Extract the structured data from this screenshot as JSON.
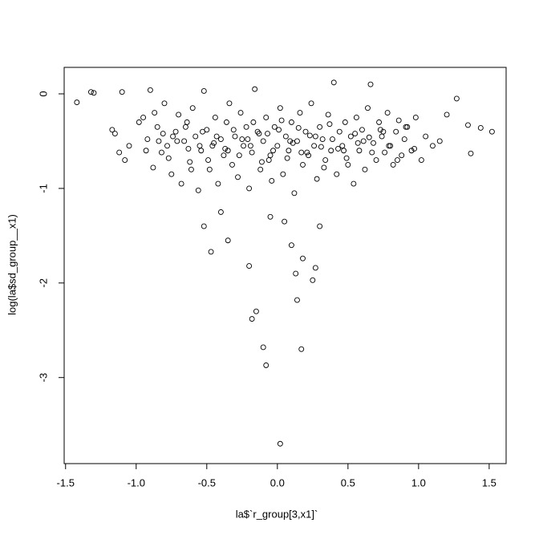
{
  "chart_data": {
    "type": "scatter",
    "x_label": "la$`r_group[3,x1]`",
    "y_label": "log(la$sd_group__x1)",
    "xlim": [
      -1.51,
      1.62
    ],
    "ylim": [
      -3.91,
      0.28
    ],
    "xticks": [
      {
        "value": -1.5,
        "label": "-1.5"
      },
      {
        "value": -1,
        "label": "-1.0"
      },
      {
        "value": -0.5,
        "label": "-0.5"
      },
      {
        "value": 0,
        "label": "0.0"
      },
      {
        "value": 0.5,
        "label": "0.5"
      },
      {
        "value": 1,
        "label": "1.0"
      },
      {
        "value": 1.5,
        "label": "1.5"
      }
    ],
    "yticks": [
      0,
      -1,
      -2,
      -3
    ],
    "color": "#000000",
    "x": [
      -1.42,
      -1.32,
      -1.3,
      -1.1,
      -1.17,
      -1.15,
      -1.08,
      -1.05,
      -1.12,
      -0.98,
      -0.95,
      -0.92,
      -0.9,
      -0.88,
      -0.85,
      -0.82,
      -0.8,
      -0.78,
      -0.75,
      -0.72,
      -0.7,
      -0.68,
      -0.66,
      -0.64,
      -0.62,
      -0.6,
      -0.58,
      -0.56,
      -0.54,
      -0.52,
      -0.5,
      -0.48,
      -0.46,
      -0.44,
      -0.42,
      -0.4,
      -0.38,
      -0.36,
      -0.34,
      -0.32,
      -0.3,
      -0.28,
      -0.26,
      -0.24,
      -0.22,
      -0.2,
      -0.18,
      -0.16,
      -0.14,
      -0.12,
      -0.1,
      -0.08,
      -0.06,
      -0.04,
      -0.02,
      0.0,
      0.02,
      0.04,
      0.06,
      0.08,
      0.1,
      0.12,
      0.14,
      0.16,
      0.18,
      0.2,
      0.22,
      0.24,
      0.26,
      0.28,
      0.3,
      0.32,
      0.34,
      0.36,
      0.38,
      0.4,
      0.42,
      0.44,
      0.46,
      0.48,
      0.5,
      0.52,
      0.54,
      0.56,
      0.58,
      0.6,
      0.62,
      0.64,
      0.66,
      0.68,
      0.7,
      0.72,
      0.74,
      0.76,
      0.78,
      0.8,
      0.82,
      0.84,
      0.86,
      0.88,
      0.9,
      0.92,
      0.95,
      0.98,
      1.02,
      1.05,
      1.1,
      1.15,
      1.2,
      1.27,
      1.35,
      1.37,
      1.44,
      1.52,
      -0.93,
      -0.87,
      -0.81,
      -0.77,
      -0.71,
      -0.65,
      -0.61,
      -0.55,
      -0.49,
      -0.43,
      -0.37,
      -0.31,
      -0.27,
      -0.21,
      -0.17,
      -0.11,
      -0.07,
      -0.03,
      0.03,
      0.07,
      0.11,
      0.15,
      0.21,
      0.27,
      0.33,
      0.37,
      0.43,
      0.49,
      0.55,
      0.61,
      0.67,
      0.73,
      0.79,
      0.85,
      0.91,
      0.97,
      -0.84,
      -0.74,
      -0.63,
      -0.53,
      -0.45,
      -0.35,
      -0.25,
      -0.19,
      -0.13,
      -0.05,
      0.01,
      0.09,
      0.17,
      0.23,
      0.31,
      0.39,
      0.47,
      0.57,
      0.65,
      0.75,
      0.02,
      -0.1,
      -0.08,
      0.17,
      -0.15,
      -0.18,
      0.14,
      -0.2,
      0.18,
      0.27,
      0.25,
      0.13,
      -0.47,
      -0.52,
      -0.35,
      0.05,
      -0.05,
      0.1,
      0.3,
      -0.4
    ],
    "values": [
      -0.09,
      0.02,
      0.01,
      0.02,
      -0.38,
      -0.42,
      -0.7,
      -0.55,
      -0.62,
      -0.3,
      -0.25,
      -0.48,
      0.04,
      -0.78,
      -0.35,
      -0.62,
      -0.1,
      -0.55,
      -0.85,
      -0.4,
      -0.22,
      -0.95,
      -0.5,
      -0.3,
      -0.72,
      -0.15,
      -0.45,
      -1.02,
      -0.6,
      0.03,
      -0.38,
      -0.8,
      -0.55,
      -0.25,
      -0.95,
      -0.48,
      -0.65,
      -0.3,
      -0.1,
      -0.75,
      -0.45,
      -0.88,
      -0.2,
      -0.55,
      -0.35,
      -1.0,
      -0.62,
      0.05,
      -0.4,
      -0.8,
      -0.5,
      -0.25,
      -0.7,
      -0.92,
      -0.35,
      -0.55,
      -0.15,
      -0.85,
      -0.45,
      -0.6,
      -0.3,
      -1.05,
      -0.5,
      -0.2,
      -0.75,
      -0.4,
      -0.65,
      -0.1,
      -0.55,
      -0.9,
      -0.35,
      -0.48,
      -0.7,
      -0.22,
      -0.6,
      0.12,
      -0.85,
      -0.4,
      -0.55,
      -0.3,
      -0.75,
      -0.45,
      -0.95,
      -0.25,
      -0.6,
      -0.38,
      -0.8,
      -0.15,
      0.1,
      -0.52,
      -0.7,
      -0.3,
      -0.45,
      -0.62,
      -0.2,
      -0.55,
      -0.75,
      -0.4,
      -0.28,
      -0.65,
      -0.48,
      -0.35,
      -0.6,
      -0.25,
      -0.7,
      -0.45,
      -0.55,
      -0.5,
      -0.22,
      -0.05,
      -0.33,
      -0.63,
      -0.36,
      -0.4,
      -0.6,
      -0.2,
      -0.42,
      -0.68,
      -0.5,
      -0.35,
      -0.8,
      -0.55,
      -0.7,
      -0.45,
      -0.58,
      -0.38,
      -0.65,
      -0.48,
      -0.3,
      -0.72,
      -0.42,
      -0.6,
      -0.28,
      -0.68,
      -0.52,
      -0.36,
      -0.62,
      -0.45,
      -0.78,
      -0.32,
      -0.58,
      -0.68,
      -0.42,
      -0.5,
      -0.62,
      -0.38,
      -0.55,
      -0.7,
      -0.35,
      -0.58,
      -0.5,
      -0.45,
      -0.58,
      -0.4,
      -0.52,
      -0.6,
      -0.48,
      -0.55,
      -0.42,
      -0.65,
      -0.38,
      -0.5,
      -0.62,
      -0.44,
      -0.56,
      -0.48,
      -0.6,
      -0.52,
      -0.46,
      -0.4,
      -3.7,
      -2.68,
      -2.87,
      -2.7,
      -2.3,
      -2.38,
      -2.18,
      -1.82,
      -1.74,
      -1.84,
      -1.97,
      -1.9,
      -1.67,
      -1.4,
      -1.55,
      -1.35,
      -1.3,
      -1.6,
      -1.4,
      -1.25
    ]
  }
}
